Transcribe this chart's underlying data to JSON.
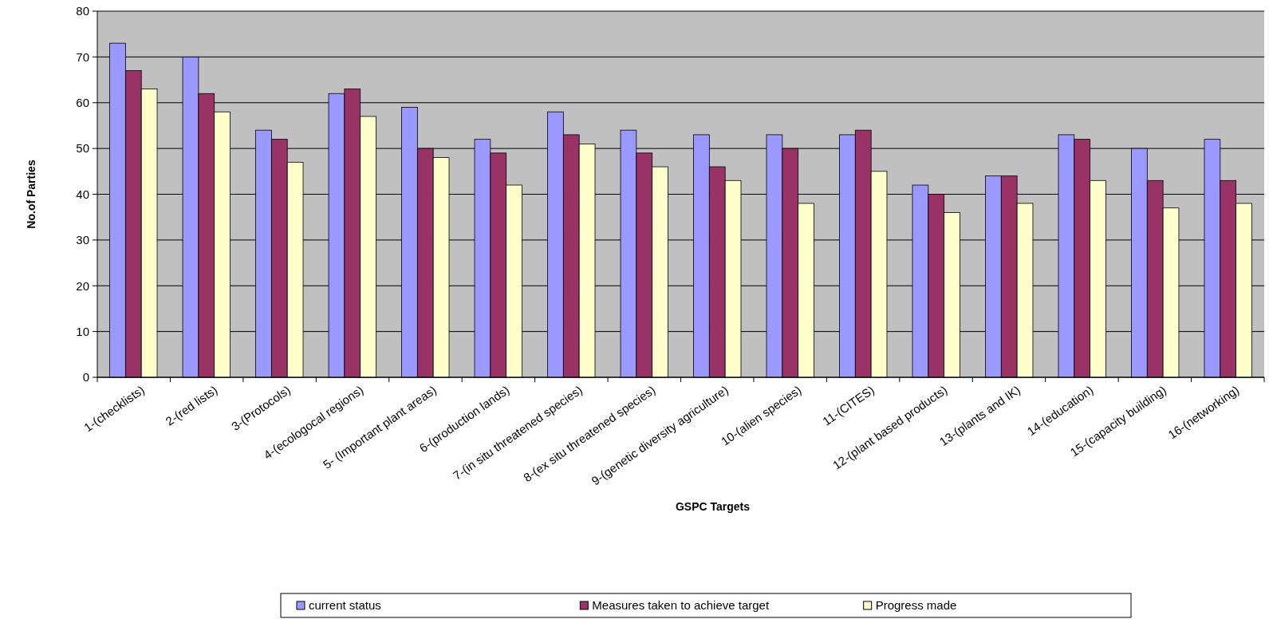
{
  "chart_data": {
    "type": "bar",
    "xlabel": "GSPC Targets",
    "ylabel": "No.of Parties",
    "categories": [
      "1-(checklists)",
      "2-(red lists)",
      "3-(Protocols)",
      "4-(ecologocal regions)",
      "5- (Important plant areas)",
      "6-(production lands)",
      "7-(in situ threatened species)",
      "8-(ex situ threatened species)",
      "9-(genetic diversity agriculture)",
      "10-(alien species)",
      "11-(CITES)",
      "12-(plant based products)",
      "13-(plants and IK)",
      "14-(education)",
      "15-(capacity building)",
      "16-(networking)"
    ],
    "series": [
      {
        "name": "current status",
        "color": "#9999ff",
        "values": [
          73,
          70,
          54,
          62,
          59,
          52,
          58,
          54,
          53,
          53,
          53,
          42,
          44,
          53,
          50,
          52
        ]
      },
      {
        "name": "Measures taken to achieve target",
        "color": "#993366",
        "values": [
          67,
          62,
          52,
          63,
          50,
          49,
          53,
          49,
          46,
          50,
          54,
          40,
          44,
          52,
          43,
          43
        ]
      },
      {
        "name": "Progress made",
        "color": "#ffffcc",
        "values": [
          63,
          58,
          47,
          57,
          48,
          42,
          51,
          46,
          43,
          38,
          45,
          36,
          38,
          43,
          37,
          38
        ]
      }
    ],
    "ylim": [
      0,
      80
    ],
    "yticks": [
      0,
      10,
      20,
      30,
      40,
      50,
      60,
      70,
      80
    ],
    "grid": "y",
    "legend": "bottom"
  }
}
